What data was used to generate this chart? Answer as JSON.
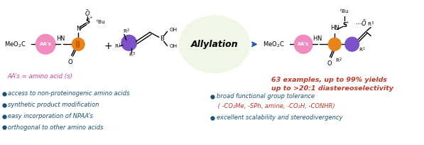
{
  "bg_color": "#ffffff",
  "figsize": [
    5.97,
    2.04
  ],
  "dpi": 100,
  "left_bullet_color": "#1a5276",
  "left_bullet_items": [
    "access to non-proteinogenic amino acids",
    "synthetic product modification",
    "easy incorporation of NPAA’s",
    "orthogonal to other amino acids"
  ],
  "right_bullet_items": [
    "broad functional group tolerance",
    " ( -CO₂Me, -SPh, amine, -CO₂H, -CONHR)",
    "excellent scalability and stereodivergency"
  ],
  "right_bullet_sub_color": "#c0392b",
  "aas_label": "AA’s = amino acid (s)",
  "aas_color": "#d44196",
  "yield_text_line1": "63 examples, up to 99% yields",
  "yield_text_line2": "up to >20:1 diastereoselectivity",
  "yield_color": "#c0392b",
  "allylation_text": "Allylation",
  "allylation_ellipse_fill": "#f0f7e6",
  "allylation_ellipse_edge": "#3a7abf",
  "arrow_color": "#2255aa",
  "pink_circle_color": "#f08cbf",
  "orange_circle_color": "#e8821a",
  "purple_circle_color": "#7b52c8",
  "meo2c_color": "#111111",
  "label_font_size": 6.0,
  "bullet_font_size": 6.0,
  "yield_font_size": 6.8,
  "chem_font_size": 6.0,
  "small_font_size": 5.2
}
